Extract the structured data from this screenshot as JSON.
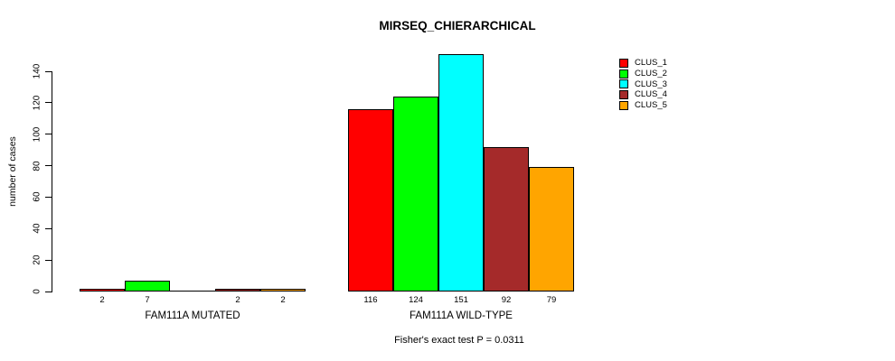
{
  "title": "MIRSEQ_CHIERARCHICAL",
  "caption": "Fisher's exact test P = 0.0311",
  "colors": {
    "background": "#ffffff",
    "axis": "#000000",
    "text": "#000000"
  },
  "chart_data": {
    "type": "bar",
    "title": "MIRSEQ_CHIERARCHICAL",
    "xlabel": "",
    "ylabel": "number of cases",
    "ylim": [
      0,
      140
    ],
    "yticks": [
      0,
      20,
      40,
      60,
      80,
      100,
      120,
      140
    ],
    "grid": false,
    "legend_position": "top-right",
    "annotation": "Fisher's exact test P = 0.0311",
    "series": [
      {
        "name": "CLUS_1",
        "color": "#FF0000"
      },
      {
        "name": "CLUS_2",
        "color": "#00FF00"
      },
      {
        "name": "CLUS_3",
        "color": "#00FFFF"
      },
      {
        "name": "CLUS_4",
        "color": "#A52A2A"
      },
      {
        "name": "CLUS_5",
        "color": "#FFA500"
      }
    ],
    "groups": [
      {
        "label": "FAM111A MUTATED",
        "values": [
          2,
          7,
          0,
          2,
          2
        ],
        "value_labels": [
          "2",
          "7",
          "",
          "2",
          "2"
        ]
      },
      {
        "label": "FAM111A WILD-TYPE",
        "values": [
          116,
          124,
          151,
          92,
          79
        ],
        "value_labels": [
          "116",
          "124",
          "151",
          "92",
          "79"
        ]
      }
    ]
  }
}
